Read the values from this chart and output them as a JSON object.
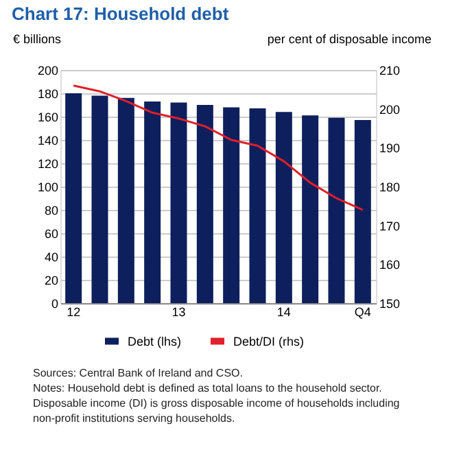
{
  "chart_data": {
    "type": "bar",
    "title": "Chart 17: Household debt",
    "categories": [
      "12",
      null,
      null,
      null,
      "13",
      null,
      null,
      null,
      "14",
      null,
      null,
      "Q4"
    ],
    "series": [
      {
        "name": "Debt (lhs)",
        "color": "#0d1f5c",
        "values": [
          180,
          178,
          176,
          173,
          172,
          170,
          168,
          167,
          164,
          161,
          159,
          157
        ]
      },
      {
        "name": "Debt/DI (rhs)",
        "type": "line",
        "axis": "y2",
        "color": "#e0202a",
        "values": [
          206,
          204.5,
          202,
          199,
          197.5,
          195.5,
          192,
          190.5,
          186.5,
          181,
          177,
          174
        ]
      }
    ],
    "ylabel": "€ billions",
    "y2label": "per cent of disposable income",
    "ylim": [
      0,
      200
    ],
    "yticks": [
      0,
      20,
      40,
      60,
      80,
      100,
      120,
      140,
      160,
      180,
      200
    ],
    "y2lim": [
      150,
      210
    ],
    "y2ticks": [
      150,
      160,
      170,
      180,
      190,
      200,
      210
    ],
    "grid": "y",
    "legend": "bottom",
    "marker": "none",
    "line_style": "solid",
    "annotations": [
      "Sources: Central Bank of Ireland and CSO.",
      "Notes: Household debt is defined as total loans to the household sector.",
      "Disposable income (DI) is gross disposable income of households including non-profit institutions serving households."
    ]
  }
}
